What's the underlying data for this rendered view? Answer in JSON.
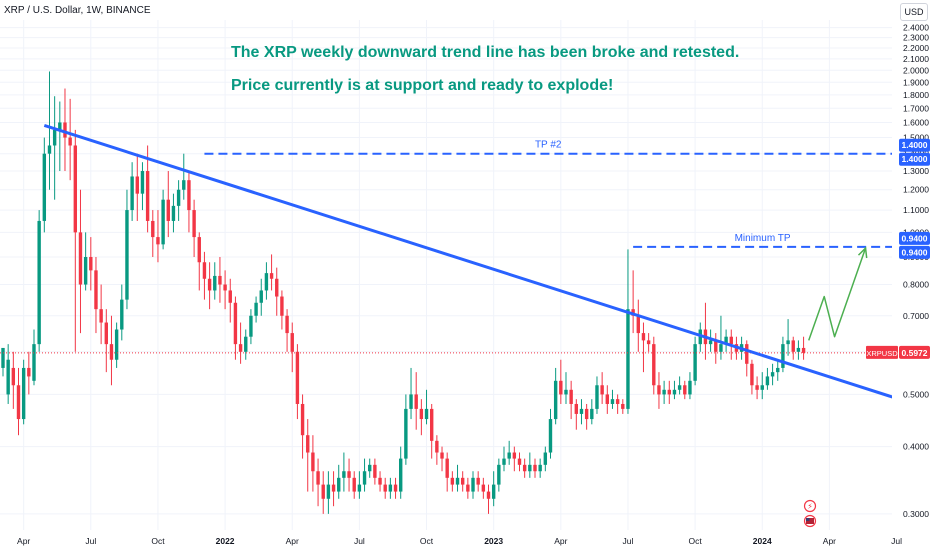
{
  "header": {
    "symbol_title": "XRP / U.S. Dollar, 1W, BINANCE"
  },
  "annotations": {
    "line1": "The XRP weekly downward trend line has been broke and retested.",
    "line2": "Price currently is at support and ready to explode!"
  },
  "currency_button": "USD",
  "colors": {
    "up": "#089981",
    "down": "#f23645",
    "trendline": "#2962ff",
    "annotation": "#089981",
    "arrow": "#4caf50",
    "last_price": "#f23645"
  },
  "chart_data": {
    "type": "candlestick",
    "title": "XRP / U.S. Dollar, 1W, BINANCE",
    "y_scale": "log",
    "ylim": [
      0.28,
      2.48
    ],
    "y_ticks": [
      "2.4000",
      "2.3000",
      "2.2000",
      "2.1000",
      "2.0000",
      "1.9000",
      "1.8000",
      "1.7000",
      "1.6000",
      "1.5000",
      "1.4000",
      "1.3000",
      "1.2000",
      "1.1000",
      "1.0000",
      "0.9000",
      "0.8000",
      "0.7000",
      "0.6000",
      "0.5000",
      "0.4000",
      "0.3000"
    ],
    "x_ticks": [
      "Apr",
      "Jul",
      "Oct",
      "2022",
      "Apr",
      "Jul",
      "Oct",
      "2023",
      "Apr",
      "Jul",
      "Oct",
      "2024",
      "Apr",
      "Jul"
    ],
    "x_range_weeks": [
      0,
      168
    ],
    "x_tick_weeks": [
      4,
      17,
      30,
      43,
      56,
      69,
      82,
      95,
      108,
      121,
      134,
      147,
      160,
      173
    ],
    "trendline": {
      "start_week": 8,
      "start_price": 1.58,
      "end_week": 177,
      "end_price": 0.478
    },
    "levels": [
      {
        "label": "TP #2",
        "price": 1.4,
        "start_week": 39,
        "price_label": "1.4000",
        "axis_label": "1.4000"
      },
      {
        "label": "Minimum TP",
        "price": 0.94,
        "start_week": 122,
        "price_label": "0.9400",
        "axis_label": "0.9400"
      }
    ],
    "last_price": {
      "symbol": "XRPUSD",
      "value": "0.5972",
      "price": 0.5972
    },
    "projection_arrow": {
      "points_week_price": [
        [
          156,
          0.63
        ],
        [
          159,
          0.76
        ],
        [
          161,
          0.64
        ],
        [
          167,
          0.935
        ]
      ]
    },
    "candles": [
      [
        0.56,
        0.61,
        0.58,
        0.54
      ],
      [
        0.5,
        0.58,
        0.62,
        0.48
      ],
      [
        0.56,
        0.52,
        0.6,
        0.47
      ],
      [
        0.52,
        0.45,
        0.56,
        0.42
      ],
      [
        0.45,
        0.56,
        0.58,
        0.44
      ],
      [
        0.56,
        0.54,
        0.6,
        0.5
      ],
      [
        0.53,
        0.62,
        0.66,
        0.52
      ],
      [
        0.62,
        1.05,
        1.1,
        0.6
      ],
      [
        1.05,
        1.4,
        1.5,
        1.0
      ],
      [
        1.4,
        1.45,
        1.99,
        1.2
      ],
      [
        1.45,
        1.55,
        1.79,
        1.15
      ],
      [
        1.55,
        1.6,
        1.75,
        1.3
      ],
      [
        1.6,
        1.5,
        1.85,
        1.3
      ],
      [
        1.5,
        1.45,
        1.77,
        1.25
      ],
      [
        1.45,
        1.0,
        1.55,
        0.6
      ],
      [
        1.0,
        0.8,
        1.2,
        0.65
      ],
      [
        0.8,
        0.9,
        1.0,
        0.78
      ],
      [
        0.9,
        0.85,
        0.98,
        0.78
      ],
      [
        0.85,
        0.72,
        0.9,
        0.65
      ],
      [
        0.72,
        0.68,
        0.8,
        0.62
      ],
      [
        0.68,
        0.62,
        0.72,
        0.55
      ],
      [
        0.62,
        0.58,
        0.7,
        0.52
      ],
      [
        0.58,
        0.66,
        0.68,
        0.56
      ],
      [
        0.66,
        0.75,
        0.8,
        0.63
      ],
      [
        0.75,
        1.1,
        1.2,
        0.72
      ],
      [
        1.1,
        1.27,
        1.35,
        1.05
      ],
      [
        1.27,
        1.18,
        1.4,
        1.05
      ],
      [
        1.18,
        1.3,
        1.35,
        1.1
      ],
      [
        1.3,
        1.05,
        1.45,
        1.0
      ],
      [
        1.05,
        0.98,
        1.1,
        0.9
      ],
      [
        0.98,
        0.95,
        1.1,
        0.88
      ],
      [
        0.95,
        1.15,
        1.2,
        0.93
      ],
      [
        1.15,
        1.05,
        1.3,
        0.98
      ],
      [
        1.05,
        1.12,
        1.18,
        1.0
      ],
      [
        1.12,
        1.2,
        1.25,
        1.05
      ],
      [
        1.2,
        1.25,
        1.4,
        1.15
      ],
      [
        1.25,
        1.1,
        1.3,
        1.0
      ],
      [
        1.1,
        0.98,
        1.15,
        0.9
      ],
      [
        0.98,
        0.88,
        1.0,
        0.78
      ],
      [
        0.88,
        0.82,
        0.92,
        0.75
      ],
      [
        0.82,
        0.78,
        0.88,
        0.72
      ],
      [
        0.78,
        0.83,
        0.88,
        0.75
      ],
      [
        0.83,
        0.8,
        0.9,
        0.74
      ],
      [
        0.8,
        0.78,
        0.85,
        0.72
      ],
      [
        0.78,
        0.74,
        0.82,
        0.68
      ],
      [
        0.74,
        0.62,
        0.76,
        0.58
      ],
      [
        0.62,
        0.6,
        0.68,
        0.57
      ],
      [
        0.6,
        0.64,
        0.66,
        0.58
      ],
      [
        0.64,
        0.7,
        0.72,
        0.62
      ],
      [
        0.7,
        0.74,
        0.76,
        0.68
      ],
      [
        0.74,
        0.78,
        0.82,
        0.7
      ],
      [
        0.78,
        0.84,
        0.88,
        0.75
      ],
      [
        0.84,
        0.82,
        0.91,
        0.78
      ],
      [
        0.82,
        0.76,
        0.86,
        0.7
      ],
      [
        0.76,
        0.7,
        0.78,
        0.66
      ],
      [
        0.7,
        0.65,
        0.72,
        0.6
      ],
      [
        0.65,
        0.6,
        0.68,
        0.55
      ],
      [
        0.6,
        0.48,
        0.62,
        0.45
      ],
      [
        0.48,
        0.42,
        0.5,
        0.38
      ],
      [
        0.42,
        0.39,
        0.45,
        0.33
      ],
      [
        0.39,
        0.36,
        0.42,
        0.33
      ],
      [
        0.36,
        0.34,
        0.38,
        0.31
      ],
      [
        0.34,
        0.32,
        0.36,
        0.3
      ],
      [
        0.32,
        0.34,
        0.36,
        0.3
      ],
      [
        0.34,
        0.33,
        0.36,
        0.31
      ],
      [
        0.33,
        0.35,
        0.37,
        0.32
      ],
      [
        0.35,
        0.36,
        0.39,
        0.33
      ],
      [
        0.36,
        0.35,
        0.38,
        0.33
      ],
      [
        0.35,
        0.33,
        0.36,
        0.32
      ],
      [
        0.33,
        0.34,
        0.36,
        0.32
      ],
      [
        0.34,
        0.36,
        0.38,
        0.33
      ],
      [
        0.36,
        0.37,
        0.38,
        0.35
      ],
      [
        0.37,
        0.35,
        0.38,
        0.34
      ],
      [
        0.35,
        0.34,
        0.36,
        0.33
      ],
      [
        0.34,
        0.33,
        0.35,
        0.32
      ],
      [
        0.33,
        0.34,
        0.35,
        0.32
      ],
      [
        0.34,
        0.33,
        0.35,
        0.32
      ],
      [
        0.33,
        0.38,
        0.4,
        0.32
      ],
      [
        0.38,
        0.47,
        0.5,
        0.37
      ],
      [
        0.47,
        0.5,
        0.56,
        0.45
      ],
      [
        0.5,
        0.47,
        0.55,
        0.43
      ],
      [
        0.47,
        0.45,
        0.49,
        0.42
      ],
      [
        0.45,
        0.47,
        0.51,
        0.44
      ],
      [
        0.47,
        0.41,
        0.48,
        0.38
      ],
      [
        0.41,
        0.39,
        0.42,
        0.37
      ],
      [
        0.39,
        0.38,
        0.4,
        0.36
      ],
      [
        0.38,
        0.35,
        0.39,
        0.33
      ],
      [
        0.35,
        0.34,
        0.36,
        0.33
      ],
      [
        0.34,
        0.35,
        0.37,
        0.33
      ],
      [
        0.35,
        0.34,
        0.36,
        0.33
      ],
      [
        0.34,
        0.33,
        0.35,
        0.32
      ],
      [
        0.33,
        0.35,
        0.36,
        0.32
      ],
      [
        0.35,
        0.34,
        0.36,
        0.33
      ],
      [
        0.34,
        0.33,
        0.35,
        0.32
      ],
      [
        0.33,
        0.32,
        0.34,
        0.3
      ],
      [
        0.32,
        0.34,
        0.36,
        0.31
      ],
      [
        0.34,
        0.37,
        0.38,
        0.33
      ],
      [
        0.37,
        0.38,
        0.4,
        0.36
      ],
      [
        0.38,
        0.39,
        0.41,
        0.37
      ],
      [
        0.39,
        0.38,
        0.4,
        0.36
      ],
      [
        0.38,
        0.37,
        0.39,
        0.36
      ],
      [
        0.37,
        0.36,
        0.38,
        0.35
      ],
      [
        0.36,
        0.37,
        0.39,
        0.35
      ],
      [
        0.37,
        0.36,
        0.38,
        0.35
      ],
      [
        0.36,
        0.37,
        0.38,
        0.35
      ],
      [
        0.37,
        0.39,
        0.4,
        0.36
      ],
      [
        0.39,
        0.45,
        0.47,
        0.38
      ],
      [
        0.45,
        0.53,
        0.56,
        0.44
      ],
      [
        0.53,
        0.5,
        0.58,
        0.48
      ],
      [
        0.5,
        0.51,
        0.55,
        0.48
      ],
      [
        0.51,
        0.48,
        0.53,
        0.45
      ],
      [
        0.48,
        0.46,
        0.49,
        0.43
      ],
      [
        0.46,
        0.47,
        0.49,
        0.44
      ],
      [
        0.47,
        0.45,
        0.48,
        0.43
      ],
      [
        0.45,
        0.47,
        0.49,
        0.44
      ],
      [
        0.47,
        0.52,
        0.54,
        0.46
      ],
      [
        0.52,
        0.5,
        0.55,
        0.48
      ],
      [
        0.5,
        0.48,
        0.52,
        0.46
      ],
      [
        0.48,
        0.49,
        0.51,
        0.47
      ],
      [
        0.49,
        0.48,
        0.5,
        0.46
      ],
      [
        0.48,
        0.47,
        0.49,
        0.46
      ],
      [
        0.47,
        0.72,
        0.93,
        0.46
      ],
      [
        0.72,
        0.7,
        0.85,
        0.65
      ],
      [
        0.7,
        0.65,
        0.75,
        0.6
      ],
      [
        0.65,
        0.63,
        0.68,
        0.55
      ],
      [
        0.63,
        0.62,
        0.65,
        0.6
      ],
      [
        0.62,
        0.52,
        0.64,
        0.5
      ],
      [
        0.52,
        0.5,
        0.55,
        0.47
      ],
      [
        0.5,
        0.51,
        0.53,
        0.48
      ],
      [
        0.51,
        0.5,
        0.53,
        0.48
      ],
      [
        0.5,
        0.51,
        0.53,
        0.49
      ],
      [
        0.51,
        0.52,
        0.54,
        0.5
      ],
      [
        0.52,
        0.5,
        0.53,
        0.49
      ],
      [
        0.5,
        0.53,
        0.55,
        0.49
      ],
      [
        0.53,
        0.62,
        0.64,
        0.52
      ],
      [
        0.62,
        0.66,
        0.68,
        0.6
      ],
      [
        0.66,
        0.62,
        0.74,
        0.58
      ],
      [
        0.62,
        0.63,
        0.66,
        0.6
      ],
      [
        0.63,
        0.6,
        0.65,
        0.57
      ],
      [
        0.6,
        0.62,
        0.7,
        0.58
      ],
      [
        0.62,
        0.64,
        0.66,
        0.6
      ],
      [
        0.64,
        0.62,
        0.66,
        0.58
      ],
      [
        0.62,
        0.6,
        0.64,
        0.58
      ],
      [
        0.6,
        0.62,
        0.64,
        0.58
      ],
      [
        0.62,
        0.57,
        0.63,
        0.54
      ],
      [
        0.57,
        0.52,
        0.58,
        0.5
      ],
      [
        0.52,
        0.51,
        0.54,
        0.49
      ],
      [
        0.51,
        0.52,
        0.55,
        0.49
      ],
      [
        0.52,
        0.54,
        0.56,
        0.51
      ],
      [
        0.54,
        0.55,
        0.57,
        0.52
      ],
      [
        0.55,
        0.56,
        0.58,
        0.53
      ],
      [
        0.56,
        0.62,
        0.64,
        0.55
      ],
      [
        0.62,
        0.63,
        0.69,
        0.59
      ],
      [
        0.63,
        0.6,
        0.64,
        0.58
      ],
      [
        0.6,
        0.61,
        0.63,
        0.58
      ],
      [
        0.61,
        0.5972,
        0.64,
        0.58
      ]
    ]
  }
}
